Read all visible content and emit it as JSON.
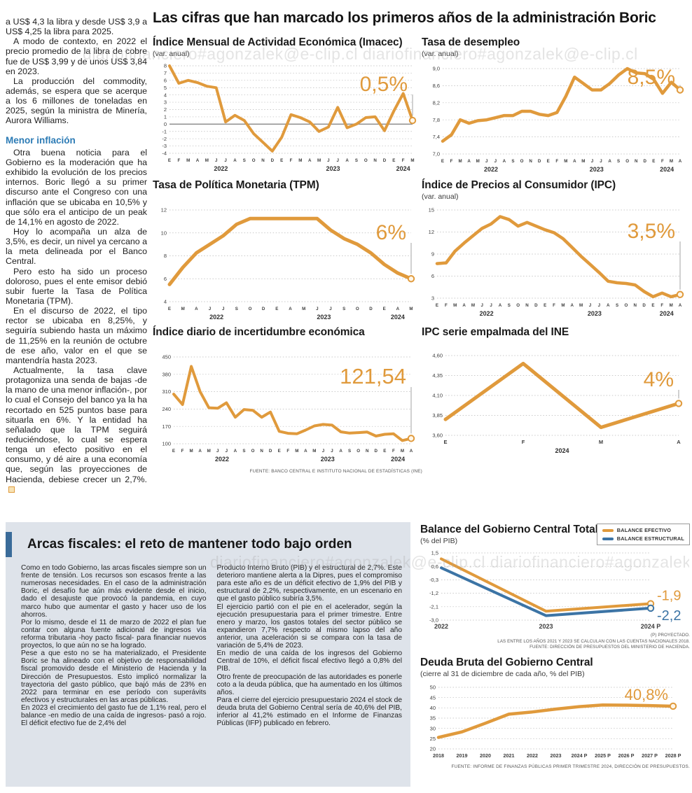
{
  "watermark": "diariofinanciero#agonzalek@e-clip.cl",
  "headline": "Las cifras que han marcado los primeros años de la administración Boric",
  "left_article": {
    "paragraphs_1": [
      "a US$ 4,3 la libra y desde US$ 3,9 a US$ 4,25 la libra para 2025.",
      "A modo de contexto, en 2022 el precio promedio de la libra de cobre fue de US$ 3,99 y de unos US$ 3,84 en 2023.",
      "La producción del commodity, además, se espera que se acerque a los 6 millones de toneladas en 2025, según la ministra de Minería, Aurora Williams."
    ],
    "subhead": "Menor inflación",
    "paragraphs_2": [
      "Otra buena noticia para el Gobierno es la moderación que ha exhibido la evolución de los precios internos. Boric llegó a su primer discurso ante el Congreso con una inflación que se ubicaba en 10,5% y que sólo era el anticipo de un peak de 14,1% en agosto de 2022.",
      "Hoy lo acompaña un alza de 3,5%, es decir, un nivel ya cercano a la meta delineada por el Banco Central.",
      "Pero esto ha sido un proceso doloroso, pues el ente emisor debió subir fuerte la Tasa de Política Monetaria (TPM).",
      "En el discurso de 2022, el tipo rector se ubicaba en 8,25%, y seguiría subiendo hasta un máximo de 11,25% en la reunión de octubre de ese año, valor en el que se mantendría hasta 2023.",
      "Actualmente, la tasa clave protagoniza una senda de bajas -de la mano de una menor inflación-, por lo cual el Consejo del banco ya la ha recortado en 525 puntos base para situarla en 6%. Y la entidad ha señalado que la TPM seguirá reduciéndose, lo cual se espera tenga un efecto positivo en el consumo, y dé aire a una economía que, según las proyecciones de Hacienda, debiese crecer un 2,7%."
    ]
  },
  "arcas": {
    "title": "Arcas fiscales: el reto de mantener todo bajo orden",
    "col1": [
      "Como en todo Gobierno, las arcas fiscales siempre son un frente de tensión. Los recursos son escasos frente a las numerosas necesidades. En el caso de la administración Boric, el desafío fue aún más evidente desde el inicio, dado el desajuste que provocó la pandemia, en cuyo marco hubo que aumentar el gasto y hacer uso de los ahorros.",
      "Por lo mismo, desde el 11 de marzo de 2022 el plan fue contar con alguna fuente adicional de ingresos vía reforma tributaria -hoy pacto fiscal- para financiar nuevos proyectos, lo que aún no se ha logrado.",
      "Pese a que esto no se ha materializado, el Presidente Boric se ha alineado con el objetivo de responsabilidad fiscal promovido desde el Ministerio de Hacienda y la Dirección de Presupuestos. Esto implicó normalizar la trayectoria del gasto público, que bajó más de 23% en 2022 para terminar en ese período con superávits efectivos y estructurales en las arcas públicas.",
      "En 2023 el crecimiento del gasto fue de 1,1% real, pero el balance -en medio de una caída de ingresos-  pasó a rojo. El déficit efectivo fue de 2,4% del"
    ],
    "col2": [
      "Producto Interno Bruto (PIB) y el estructural de 2,7%. Este deterioro mantiene alerta a la Dipres, pues el compromiso para este año es de un déficit efectivo de 1,9% del PIB y estructural de 2,2%, respectivamente, en un escenario en que el gasto público subiría 3,5%.",
      "El ejercicio partió con el pie en el acelerador, según la ejecución presupuestaria para el primer trimestre. Entre enero y marzo, los gastos totales del sector público se expandieron 7,7% respecto al mismo lapso del año anterior, una aceleración si se compara con la tasa de variación de 5,4% de 2023.",
      "En medio de una caída de los ingresos del Gobierno Central de 10%, el déficit fiscal efectivo llegó a 0,8% del PIB.",
      "Otro frente de preocupación de las autoridades es ponerle coto a la deuda pública, que ha aumentado en los últimos años.",
      "Para el cierre del ejercicio presupuestario 2024 el stock de deuda bruta del Gobierno Central sería de 40,6% del PIB, inferior al 41,2% estimado en el Informe de Finanzas Públicas (IFP) publicado en febrero."
    ]
  },
  "chart_data": [
    {
      "id": "imacec",
      "type": "line",
      "title": "Índice Mensual de Actividad Económica (Imacec)",
      "subtitle": "(var. anual)",
      "value_label": "0,5%",
      "color": "#E09A3C",
      "ylim": [
        -4,
        8
      ],
      "zero_line": true,
      "yticks": [
        8,
        7,
        6,
        5,
        4,
        3,
        2,
        1,
        0,
        -1,
        -2,
        -3,
        -4
      ],
      "ytick_labels": [
        "8",
        "7",
        "6",
        "5",
        "4",
        "3",
        "2",
        "1",
        "0",
        "-1",
        "-2",
        "-3",
        "-4"
      ],
      "x_labels": [
        "E",
        "F",
        "M",
        "A",
        "M",
        "J",
        "J",
        "A",
        "S",
        "O",
        "N",
        "D",
        "E",
        "F",
        "M",
        "A",
        "M",
        "J",
        "J",
        "A",
        "S",
        "O",
        "N",
        "D",
        "E",
        "F",
        "M"
      ],
      "years": [
        {
          "label": "2022",
          "at": 5.5
        },
        {
          "label": "2023",
          "at": 17.5
        },
        {
          "label": "2024",
          "at": 25
        }
      ],
      "values": [
        8.0,
        5.6,
        6.0,
        5.7,
        5.2,
        5.0,
        0.3,
        1.2,
        0.5,
        -1.3,
        -2.5,
        -3.7,
        -1.8,
        1.3,
        0.9,
        0.3,
        -1.0,
        -0.4,
        2.3,
        -0.5,
        0.0,
        0.9,
        1.0,
        -0.9,
        1.8,
        4.2,
        0.5
      ]
    },
    {
      "id": "desempleo",
      "type": "line",
      "title": "Tasa de desempleo",
      "subtitle": "(var. anual)",
      "value_label": "8,5%",
      "color": "#E09A3C",
      "ylim": [
        7.0,
        9.0
      ],
      "yticks": [
        9.0,
        8.6,
        8.2,
        7.8,
        7.4,
        7.0
      ],
      "ytick_labels": [
        "9,0",
        "8,6",
        "8,2",
        "7,8",
        "7,4",
        "7,0"
      ],
      "x_labels": [
        "E",
        "F",
        "M",
        "A",
        "M",
        "J",
        "J",
        "A",
        "S",
        "O",
        "N",
        "D",
        "E",
        "F",
        "M",
        "A",
        "M",
        "J",
        "J",
        "A",
        "S",
        "O",
        "N",
        "D",
        "E",
        "F",
        "M",
        "A"
      ],
      "years": [
        {
          "label": "2022",
          "at": 5.5
        },
        {
          "label": "2023",
          "at": 17.5
        },
        {
          "label": "2024",
          "at": 25.5
        }
      ],
      "values": [
        7.3,
        7.45,
        7.8,
        7.72,
        7.78,
        7.8,
        7.85,
        7.9,
        7.9,
        8.0,
        8.0,
        7.93,
        7.9,
        7.97,
        8.35,
        8.8,
        8.65,
        8.5,
        8.5,
        8.65,
        8.85,
        9.0,
        8.9,
        8.88,
        8.75,
        8.42,
        8.68,
        8.5
      ]
    },
    {
      "id": "tpm",
      "type": "line",
      "title": "Tasa de Política Monetaria (TPM)",
      "subtitle": "",
      "value_label": "6%",
      "color": "#E09A3C",
      "ylim": [
        4,
        12
      ],
      "yticks": [
        12,
        10,
        8,
        6,
        4
      ],
      "ytick_labels": [
        "12",
        "10",
        "8",
        "6",
        "4"
      ],
      "x_labels": [
        "E",
        "M",
        "A",
        "J",
        "J",
        "S",
        "O",
        "D",
        "E",
        "A",
        "M",
        "J",
        "J",
        "S",
        "O",
        "D",
        "E",
        "A",
        "M"
      ],
      "years": [
        {
          "label": "2022",
          "at": 3.5
        },
        {
          "label": "2023",
          "at": 11.5
        },
        {
          "label": "2024",
          "at": 17
        }
      ],
      "values": [
        5.5,
        7.0,
        8.25,
        9.0,
        9.75,
        10.75,
        11.25,
        11.25,
        11.25,
        11.25,
        11.25,
        11.25,
        10.25,
        9.5,
        9.0,
        8.25,
        7.25,
        6.5,
        6.0
      ]
    },
    {
      "id": "ipc",
      "type": "line",
      "title": "Índice de Precios al Consumidor (IPC)",
      "subtitle": "(var. anual)",
      "value_label": "3,5%",
      "color": "#E09A3C",
      "ylim": [
        3,
        15
      ],
      "yticks": [
        15,
        12,
        9,
        6,
        3
      ],
      "ytick_labels": [
        "15",
        "12",
        "9",
        "6",
        "3"
      ],
      "x_labels": [
        "E",
        "F",
        "M",
        "A",
        "M",
        "J",
        "J",
        "A",
        "S",
        "O",
        "N",
        "D",
        "E",
        "F",
        "M",
        "A",
        "M",
        "J",
        "J",
        "A",
        "S",
        "O",
        "N",
        "D",
        "E",
        "F",
        "M",
        "A"
      ],
      "years": [
        {
          "label": "2022",
          "at": 5.5
        },
        {
          "label": "2023",
          "at": 17.5
        },
        {
          "label": "2024",
          "at": 25.5
        }
      ],
      "values": [
        7.7,
        7.8,
        9.4,
        10.5,
        11.5,
        12.5,
        13.1,
        14.1,
        13.7,
        12.8,
        13.3,
        12.8,
        12.3,
        11.9,
        11.1,
        9.9,
        8.7,
        7.6,
        6.5,
        5.3,
        5.1,
        5.0,
        4.8,
        3.9,
        3.2,
        3.7,
        3.2,
        3.5
      ]
    },
    {
      "id": "incert",
      "type": "line",
      "title": "Índice diario de incertidumbre económica",
      "subtitle": "",
      "value_label": "121,54",
      "color": "#E09A3C",
      "ylim": [
        100,
        450
      ],
      "yticks": [
        450,
        380,
        310,
        240,
        170,
        100
      ],
      "ytick_labels": [
        "450",
        "380",
        "310",
        "240",
        "170",
        "100"
      ],
      "x_labels": [
        "E",
        "F",
        "M",
        "A",
        "M",
        "J",
        "J",
        "A",
        "S",
        "O",
        "N",
        "D",
        "E",
        "F",
        "M",
        "A",
        "M",
        "J",
        "J",
        "A",
        "S",
        "O",
        "N",
        "D",
        "E",
        "F",
        "M",
        "A"
      ],
      "years": [
        {
          "label": "2022",
          "at": 5.5
        },
        {
          "label": "2023",
          "at": 17.5
        },
        {
          "label": "2024",
          "at": 25.5
        }
      ],
      "values": [
        300,
        258,
        412,
        310,
        245,
        243,
        265,
        207,
        238,
        235,
        207,
        228,
        150,
        142,
        140,
        155,
        172,
        178,
        175,
        148,
        143,
        145,
        147,
        131,
        138,
        140,
        113,
        121.54
      ],
      "source": "FUENTE: BANCO CENTRAL E INSTITUTO NACIONAL DE ESTADÍSTICAS (INE)"
    },
    {
      "id": "ipcine",
      "type": "line",
      "title": "IPC serie empalmada del INE",
      "subtitle": "",
      "value_label": "4%",
      "color": "#E09A3C",
      "ylim": [
        3.6,
        4.6
      ],
      "yticks": [
        4.6,
        4.35,
        4.1,
        3.85,
        3.6
      ],
      "ytick_labels": [
        "4,60",
        "4,35",
        "4,10",
        "3,85",
        "3,60"
      ],
      "x_labels": [
        "E",
        "F",
        "M",
        "A"
      ],
      "years": [
        {
          "label": "2024",
          "at": 1.5
        }
      ],
      "values": [
        3.8,
        4.5,
        3.7,
        4.0
      ]
    },
    {
      "id": "balance",
      "type": "line",
      "title": "Balance del Gobierno Central Total",
      "subtitle": "(% del PIB)",
      "ylim": [
        -3.0,
        1.5
      ],
      "yticks": [
        1.5,
        0.6,
        -0.3,
        -1.2,
        -2.1,
        -3.0
      ],
      "ytick_labels": [
        "1,5",
        "0,6",
        "-0,3",
        "-1,2",
        "-2,1",
        "-3,0"
      ],
      "x_labels": [
        "2022",
        "2023",
        "2024 P"
      ],
      "series": [
        {
          "name": "BALANCE EFECTIVO",
          "color": "#E09A3C",
          "values": [
            1.1,
            -2.4,
            -1.9
          ],
          "end_label": "-1,9"
        },
        {
          "name": "BALANCE ESTRUCTURAL",
          "color": "#3C74A5",
          "values": [
            0.5,
            -2.7,
            -2.2
          ],
          "end_label": "-2,2"
        }
      ],
      "footnotes": [
        "(P) PROYECTADO.",
        "LAS ENTRE LOS AÑOS 2021 Y 2023 SE CALCULAN  CON LAS CUENTAS NACIONALES 2018.",
        "FUENTE: DIRECCIÓN DE PRESUPUESTOS DEL MINISTERIO DE HACIENDA."
      ]
    },
    {
      "id": "deuda",
      "type": "line",
      "title": "Deuda Bruta del Gobierno Central",
      "subtitle": "(cierre al 31 de diciembre de cada año, % del PIB)",
      "value_label": "40,8%",
      "color": "#E09A3C",
      "ylim": [
        20,
        50
      ],
      "yticks": [
        50,
        45,
        40,
        35,
        30,
        25,
        20
      ],
      "ytick_labels": [
        "50",
        "45",
        "40",
        "35",
        "30",
        "25",
        "20"
      ],
      "x_labels": [
        "2018",
        "2019",
        "2020",
        "2021",
        "2022",
        "2023",
        "2024 P",
        "2025 P",
        "2026 P",
        "2027 P",
        "2028 P"
      ],
      "values": [
        25.6,
        28.3,
        32.5,
        36.9,
        38.0,
        39.4,
        40.6,
        41.4,
        41.3,
        41.1,
        40.8
      ],
      "source": "FUENTE: INFORME DE FINANZAS PÚBLICAS PRIMER TRIMESTRE 2024, DIRECCIÓN DE PRESUPUESTOS."
    }
  ]
}
